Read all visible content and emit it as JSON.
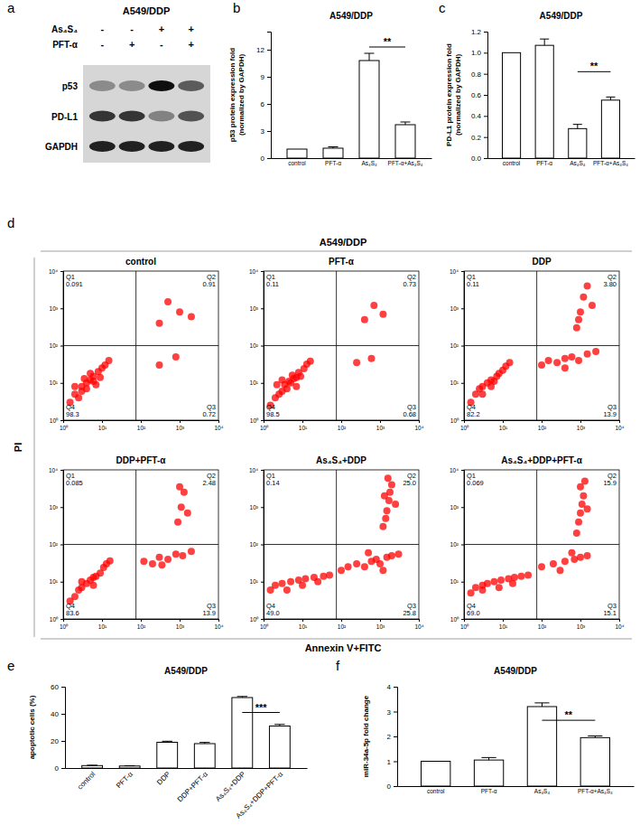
{
  "panel_labels": [
    "a",
    "b",
    "c",
    "d",
    "e",
    "f"
  ],
  "blot": {
    "title": "A549/DDP",
    "treatments": [
      {
        "name": "As₄S₄",
        "signs": [
          "-",
          "-",
          "+",
          "+"
        ]
      },
      {
        "name": "PFT-α",
        "signs": [
          "-",
          "+",
          "-",
          "+"
        ]
      }
    ],
    "bands": [
      {
        "name": "p53",
        "intensity": [
          0.35,
          0.35,
          1,
          0.6
        ]
      },
      {
        "name": "PD-L1",
        "intensity": [
          0.8,
          0.8,
          0.4,
          0.65
        ]
      },
      {
        "name": "GAPDH",
        "intensity": [
          0.9,
          0.9,
          0.9,
          0.9
        ]
      }
    ]
  },
  "flow_figure": {
    "title": "A549/DDP",
    "x_label": "Annexin V+FITC",
    "y_label": "PI"
  },
  "chart_data": [
    {
      "type": "bar",
      "title": "A549/DDP",
      "y_label": [
        "p53 protein expression fold",
        "(normalized by GAPDH)"
      ],
      "categories": [
        "control",
        "PFT-α",
        "As₄S₄",
        "PFT-α+As₄S₄"
      ],
      "values": [
        1,
        1.1,
        10.8,
        3.7
      ],
      "errors": [
        null,
        0.15,
        0.8,
        0.3
      ],
      "color": "#ffffff",
      "ylim": [
        0,
        14
      ],
      "yticks": [
        0,
        3,
        6,
        9,
        12
      ],
      "annotations": [
        {
          "text": "**",
          "from": 2,
          "to": 3,
          "y": 12.3
        }
      ]
    },
    {
      "type": "bar",
      "title": "A549/DDP",
      "y_label": [
        "PD-L1 protein expression fold",
        "(normalized by GAPDH)"
      ],
      "categories": [
        "control",
        "PFT-α",
        "As₄S₄",
        "PFT-α+As₄S₄"
      ],
      "values": [
        1,
        1.07,
        0.28,
        0.55
      ],
      "errors": [
        null,
        0.06,
        0.04,
        0.03
      ],
      "color": "#ffffff",
      "ylim": [
        0,
        1.2
      ],
      "yticks": [
        {
          "value": 0,
          "label": "0.0"
        },
        0.2,
        0.4,
        0.6,
        0.8,
        {
          "value": 1,
          "label": "1.0"
        },
        1.2
      ],
      "annotations": [
        {
          "text": "**",
          "from": 2,
          "to": 3,
          "y": 0.82
        }
      ]
    },
    {
      "type": "scatter",
      "title": "control",
      "log": true,
      "color": "#ff0000",
      "marker": "circle",
      "xlim": [
        1,
        10000
      ],
      "ylim": [
        1,
        10000
      ],
      "xticks": [
        {
          "value": 1,
          "label": "10⁰"
        },
        {
          "value": 10,
          "label": "10¹"
        },
        {
          "value": 100,
          "label": "10²"
        },
        {
          "value": 1000,
          "label": "10³"
        },
        {
          "value": 10000,
          "label": "10⁴"
        }
      ],
      "yticks": [
        {
          "value": 1,
          "label": "10⁰"
        },
        {
          "value": 10,
          "label": "10¹"
        },
        {
          "value": 100,
          "label": "10²"
        },
        {
          "value": 1000,
          "label": "10³"
        },
        {
          "value": 10000,
          "label": "10⁴"
        }
      ],
      "quadrant_x": 75,
      "quadrant_y": 100,
      "quadrants": [
        {
          "name": "Q1",
          "value": 0.091
        },
        {
          "name": "Q2",
          "value": 0.91
        },
        {
          "name": "Q3",
          "value": 0.72
        },
        {
          "name": "Q4",
          "value": 98.3
        }
      ],
      "x": [
        1.5,
        2,
        2.5,
        3,
        3,
        4,
        4,
        5,
        5,
        6,
        6,
        7,
        8,
        9,
        10,
        12,
        15,
        2,
        3.5,
        300,
        500,
        1000,
        2000,
        300,
        800
      ],
      "y": [
        3,
        5,
        4,
        6,
        8,
        7,
        10,
        12,
        18,
        11,
        15,
        9,
        20,
        14,
        25,
        30,
        40,
        8,
        13,
        400,
        1500,
        800,
        600,
        30,
        50
      ]
    },
    {
      "type": "scatter",
      "title": "PFT-α",
      "log": true,
      "color": "#ff0000",
      "marker": "circle",
      "xlim": [
        1,
        10000
      ],
      "ylim": [
        1,
        10000
      ],
      "xticks": [
        {
          "value": 1,
          "label": "10⁰"
        },
        {
          "value": 10,
          "label": "10¹"
        },
        {
          "value": 100,
          "label": "10²"
        },
        {
          "value": 1000,
          "label": "10³"
        },
        {
          "value": 10000,
          "label": "10⁴"
        }
      ],
      "yticks": [
        {
          "value": 1,
          "label": "10⁰"
        },
        {
          "value": 10,
          "label": "10¹"
        },
        {
          "value": 100,
          "label": "10²"
        },
        {
          "value": 1000,
          "label": "10³"
        },
        {
          "value": 10000,
          "label": "10⁴"
        }
      ],
      "quadrant_x": 75,
      "quadrant_y": 100,
      "quadrants": [
        {
          "name": "Q1",
          "value": 0.11
        },
        {
          "name": "Q2",
          "value": 0.73
        },
        {
          "name": "Q3",
          "value": 0.68
        },
        {
          "name": "Q4",
          "value": 98.5
        }
      ],
      "x": [
        1.5,
        2,
        2.5,
        3,
        3.5,
        4,
        4.5,
        5,
        5.5,
        6,
        7,
        7,
        8,
        9,
        11,
        13,
        16,
        2.2,
        3,
        400,
        700,
        1200,
        250,
        600
      ],
      "y": [
        2.5,
        4,
        5,
        6,
        9,
        7,
        11,
        10,
        16,
        13,
        14,
        8,
        19,
        15,
        24,
        32,
        38,
        9,
        12,
        500,
        1200,
        700,
        35,
        45
      ]
    },
    {
      "type": "scatter",
      "title": "DDP",
      "log": true,
      "color": "#ff0000",
      "marker": "circle",
      "xlim": [
        1,
        10000
      ],
      "ylim": [
        1,
        10000
      ],
      "xticks": [
        {
          "value": 1,
          "label": "10⁰"
        },
        {
          "value": 10,
          "label": "10¹"
        },
        {
          "value": 100,
          "label": "10²"
        },
        {
          "value": 1000,
          "label": "10³"
        },
        {
          "value": 10000,
          "label": "10⁴"
        }
      ],
      "yticks": [
        {
          "value": 1,
          "label": "10⁰"
        },
        {
          "value": 10,
          "label": "10¹"
        },
        {
          "value": 100,
          "label": "10²"
        },
        {
          "value": 1000,
          "label": "10³"
        },
        {
          "value": 10000,
          "label": "10⁴"
        }
      ],
      "quadrant_x": 75,
      "quadrant_y": 100,
      "quadrants": [
        {
          "name": "Q1",
          "value": 0.11
        },
        {
          "name": "Q2",
          "value": 3.8,
          "label": "3.80"
        },
        {
          "name": "Q3",
          "value": 13.9
        },
        {
          "name": "Q4",
          "value": 82.2
        }
      ],
      "x": [
        1.5,
        2,
        3,
        3,
        4,
        5,
        6,
        7,
        8,
        10,
        12,
        15,
        2.5,
        5,
        100,
        150,
        250,
        400,
        600,
        900,
        1500,
        2500,
        400,
        800,
        1000,
        1200,
        1500,
        900,
        2000
      ],
      "y": [
        3,
        5,
        5,
        8,
        10,
        12,
        11,
        15,
        18,
        22,
        28,
        35,
        7,
        8,
        30,
        40,
        35,
        45,
        50,
        40,
        60,
        70,
        25,
        300,
        800,
        2000,
        4000,
        500,
        1200
      ]
    },
    {
      "type": "scatter",
      "title": "DDP+PFT-α",
      "log": true,
      "color": "#ff0000",
      "marker": "circle",
      "xlim": [
        1,
        10000
      ],
      "ylim": [
        1,
        10000
      ],
      "xticks": [
        {
          "value": 1,
          "label": "10⁰"
        },
        {
          "value": 10,
          "label": "10¹"
        },
        {
          "value": 100,
          "label": "10²"
        },
        {
          "value": 1000,
          "label": "10³"
        },
        {
          "value": 10000,
          "label": "10⁴"
        }
      ],
      "yticks": [
        {
          "value": 1,
          "label": "10⁰"
        },
        {
          "value": 10,
          "label": "10¹"
        },
        {
          "value": 100,
          "label": "10²"
        },
        {
          "value": 1000,
          "label": "10³"
        },
        {
          "value": 10000,
          "label": "10⁴"
        }
      ],
      "quadrant_x": 75,
      "quadrant_y": 100,
      "quadrants": [
        {
          "name": "Q1",
          "value": 0.085
        },
        {
          "name": "Q2",
          "value": 2.48
        },
        {
          "name": "Q3",
          "value": 13.9
        },
        {
          "name": "Q4",
          "value": 83.6
        }
      ],
      "x": [
        1.5,
        2,
        2.5,
        3,
        4,
        5,
        6,
        7,
        9,
        11,
        13,
        16,
        3,
        6,
        120,
        200,
        300,
        500,
        800,
        1200,
        2000,
        350,
        900,
        1100,
        1300,
        1000,
        1600
      ],
      "y": [
        3,
        4,
        6,
        7,
        9,
        11,
        13,
        14,
        17,
        24,
        30,
        36,
        10,
        8,
        35,
        30,
        45,
        40,
        55,
        50,
        65,
        28,
        400,
        1000,
        2500,
        3500,
        700
      ]
    },
    {
      "type": "scatter",
      "title": "As₄S₄+DDP",
      "log": true,
      "color": "#ff0000",
      "marker": "circle",
      "xlim": [
        1,
        10000
      ],
      "ylim": [
        1,
        10000
      ],
      "xticks": [
        {
          "value": 1,
          "label": "10⁰"
        },
        {
          "value": 10,
          "label": "10¹"
        },
        {
          "value": 100,
          "label": "10²"
        },
        {
          "value": 1000,
          "label": "10³"
        },
        {
          "value": 10000,
          "label": "10⁴"
        }
      ],
      "yticks": [
        {
          "value": 1,
          "label": "10⁰"
        },
        {
          "value": 10,
          "label": "10¹"
        },
        {
          "value": 100,
          "label": "10²"
        },
        {
          "value": 1000,
          "label": "10³"
        },
        {
          "value": 10000,
          "label": "10⁴"
        }
      ],
      "quadrant_x": 75,
      "quadrant_y": 100,
      "quadrants": [
        {
          "name": "Q1",
          "value": 0.14
        },
        {
          "name": "Q2",
          "value": 25,
          "label": "25.0"
        },
        {
          "name": "Q3",
          "value": 25.8
        },
        {
          "name": "Q4",
          "value": 49,
          "label": "49.0"
        }
      ],
      "x": [
        1.5,
        2,
        3,
        5,
        8,
        12,
        20,
        35,
        50,
        4,
        10,
        25,
        100,
        150,
        250,
        400,
        600,
        800,
        1000,
        1500,
        2000,
        3000,
        500,
        1200,
        1200,
        1400,
        1500,
        1700,
        1800,
        2000,
        1300,
        2500,
        1600
      ],
      "y": [
        6,
        8,
        9,
        10,
        11,
        12,
        13,
        14,
        15,
        6,
        8,
        10,
        20,
        25,
        30,
        25,
        35,
        40,
        30,
        45,
        50,
        55,
        60,
        20,
        300,
        500,
        800,
        1500,
        2500,
        4000,
        2000,
        1200,
        6000
      ]
    },
    {
      "type": "scatter",
      "title": "As₄S₄+DDP+PFT-α",
      "log": true,
      "color": "#ff0000",
      "marker": "circle",
      "xlim": [
        1,
        10000
      ],
      "ylim": [
        1,
        10000
      ],
      "xticks": [
        {
          "value": 1,
          "label": "10⁰"
        },
        {
          "value": 10,
          "label": "10¹"
        },
        {
          "value": 100,
          "label": "10²"
        },
        {
          "value": 1000,
          "label": "10³"
        },
        {
          "value": 10000,
          "label": "10⁴"
        }
      ],
      "yticks": [
        {
          "value": 1,
          "label": "10⁰"
        },
        {
          "value": 10,
          "label": "10¹"
        },
        {
          "value": 100,
          "label": "10²"
        },
        {
          "value": 1000,
          "label": "10³"
        },
        {
          "value": 10000,
          "label": "10⁴"
        }
      ],
      "quadrant_x": 75,
      "quadrant_y": 100,
      "quadrants": [
        {
          "name": "Q1",
          "value": 0.069
        },
        {
          "name": "Q2",
          "value": 15.9
        },
        {
          "name": "Q3",
          "value": 15.1
        },
        {
          "name": "Q4",
          "value": 69,
          "label": "69.0"
        }
      ],
      "x": [
        1.5,
        2,
        3,
        4,
        6,
        9,
        14,
        20,
        30,
        45,
        3,
        8,
        18,
        100,
        200,
        400,
        700,
        1000,
        1500,
        300,
        600,
        800,
        900,
        1000,
        1100,
        1200,
        1000,
        1500,
        1300
      ],
      "y": [
        5,
        7,
        8,
        9,
        10,
        11,
        12,
        13,
        14,
        15,
        6,
        7,
        9,
        25,
        30,
        35,
        40,
        45,
        50,
        20,
        60,
        200,
        400,
        700,
        1200,
        2000,
        3500,
        900,
        5000
      ]
    },
    {
      "type": "bar",
      "title": "A549/DDP",
      "y_label": [
        "apoptotic cells (%)"
      ],
      "categories": [
        "control",
        "PFT-α",
        "DDP",
        "DDP+PFT-α",
        "As₄S₄+DDP",
        "As₄S₄+DDP+PFT-α"
      ],
      "values": [
        1.8,
        1.5,
        19,
        18,
        52,
        31
      ],
      "errors": [
        0.3,
        0.2,
        0.8,
        0.9,
        0.8,
        1.2
      ],
      "color": "#ffffff",
      "ylim": [
        0,
        60
      ],
      "yticks": [
        0,
        20,
        40,
        60
      ],
      "annotations": [
        {
          "text": "***",
          "from": 4,
          "to": 5,
          "y": 41
        }
      ]
    },
    {
      "type": "bar",
      "title": "A549/DDP",
      "y_label": [
        "miR-34a-5p fold change"
      ],
      "categories": [
        "control",
        "PFT-α",
        "As₄S₄",
        "PFT-α+As₄S₄"
      ],
      "values": [
        1,
        1.05,
        3.2,
        1.95
      ],
      "errors": [
        null,
        0.1,
        0.15,
        0.07
      ],
      "color": "#ffffff",
      "ylim": [
        0,
        4
      ],
      "yticks": [
        0,
        1,
        2,
        3,
        4
      ],
      "annotations": [
        {
          "text": "**",
          "from": 2,
          "to": 3,
          "y": 2.65
        }
      ]
    }
  ]
}
